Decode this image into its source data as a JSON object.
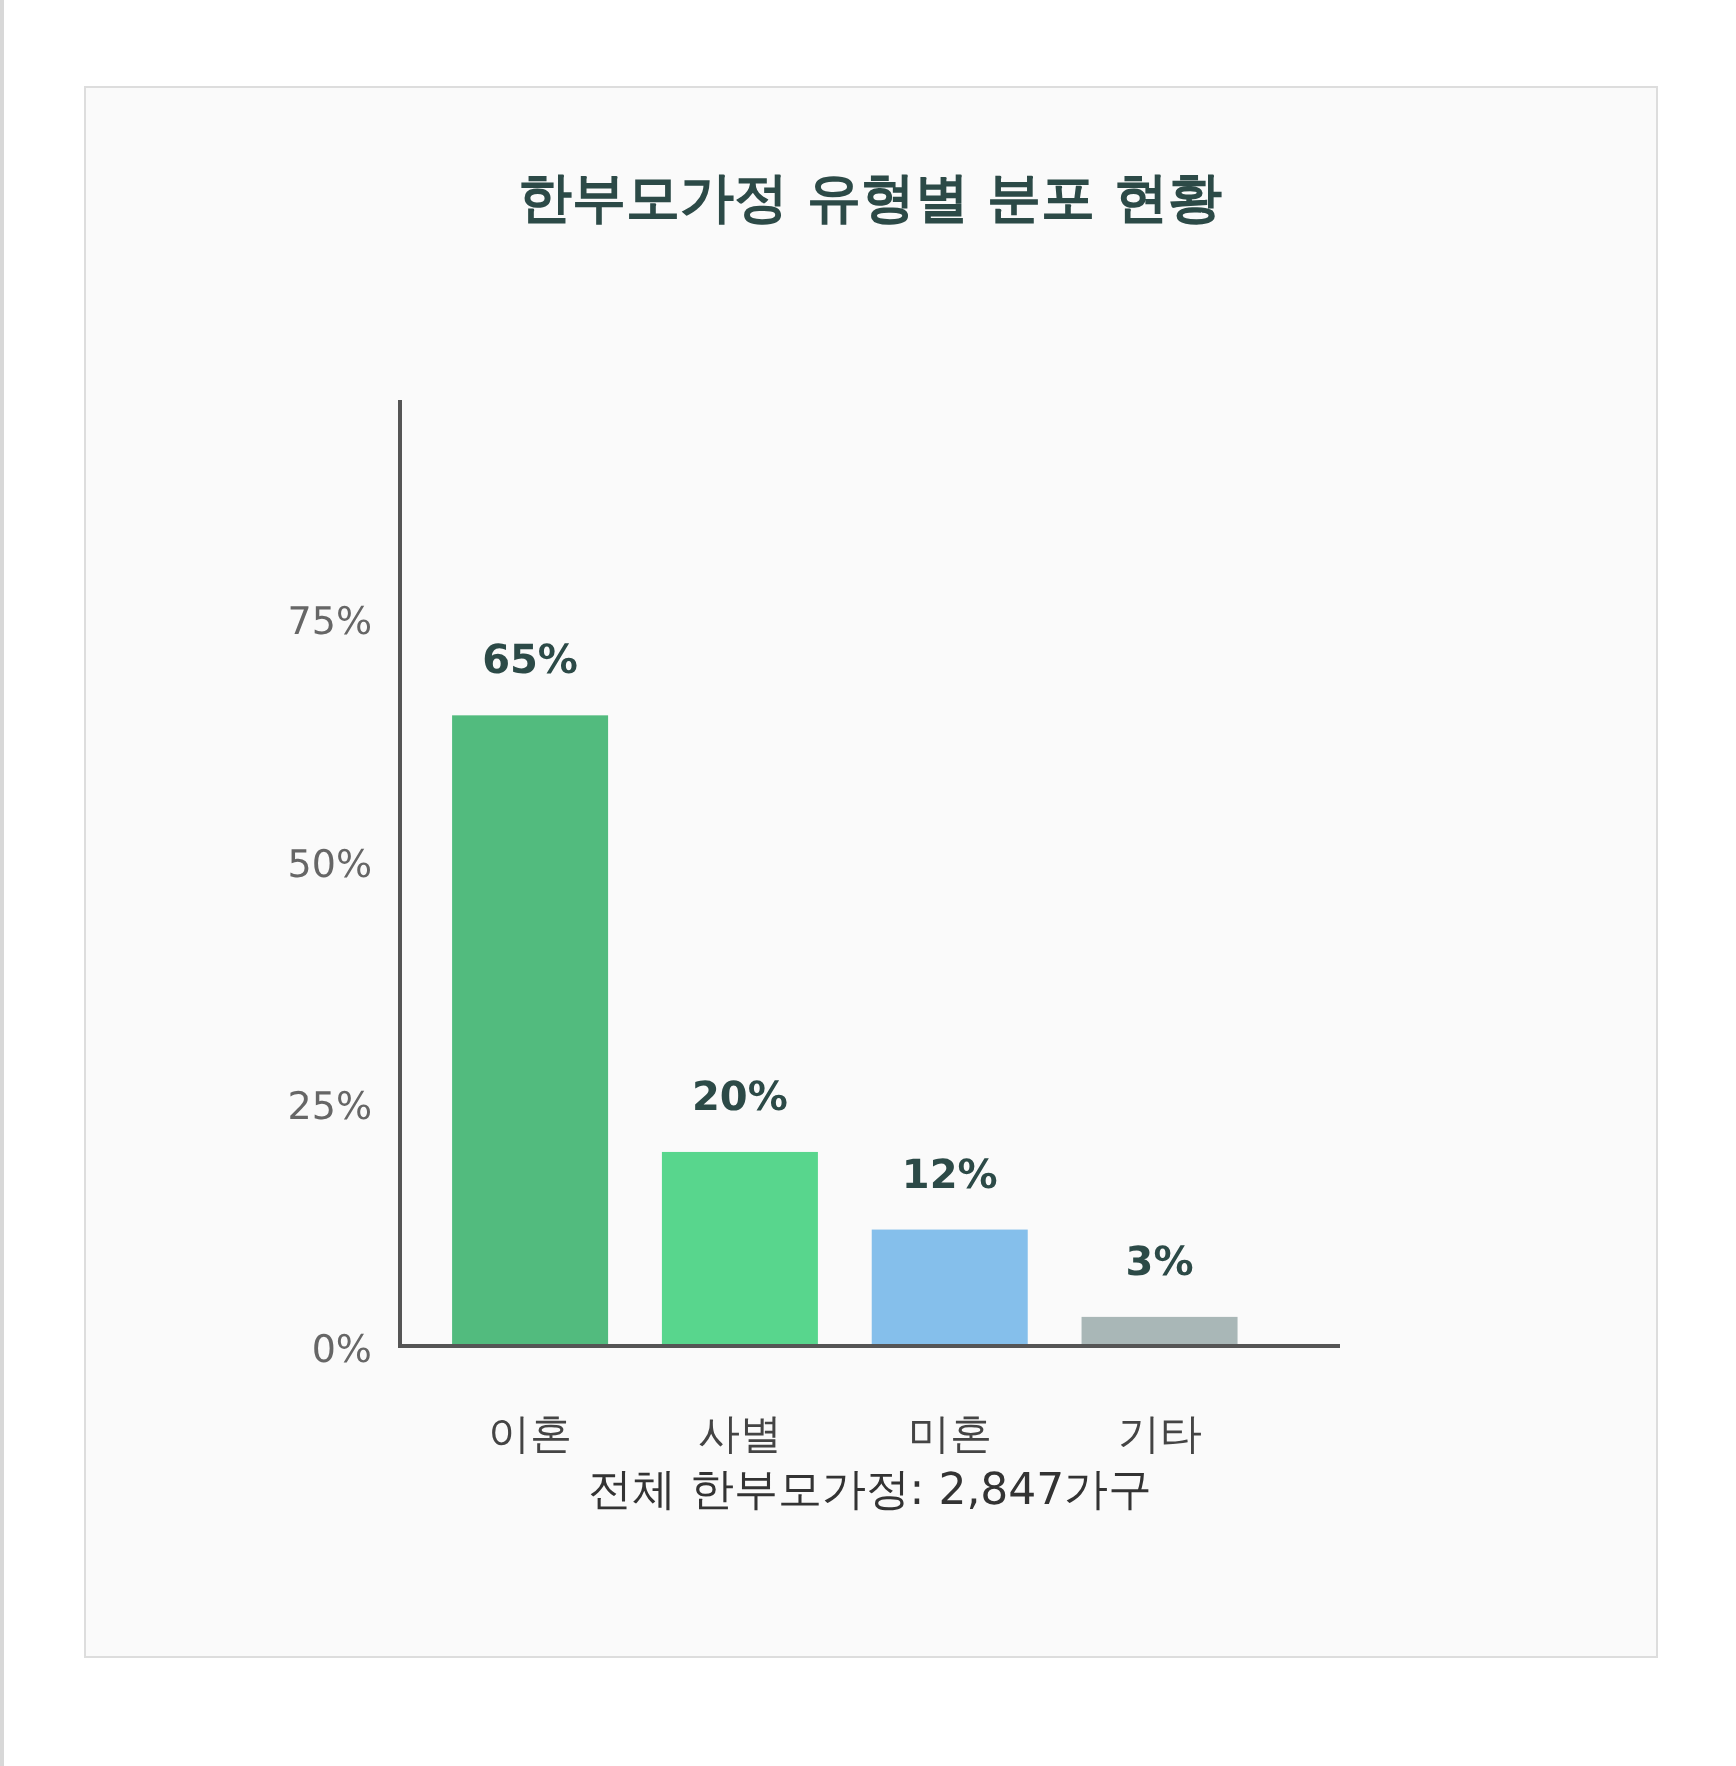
{
  "chart_data": {
    "type": "bar",
    "title": "한부모가정 유형별 분포 현황",
    "categories": [
      "이혼",
      "사별",
      "미혼",
      "기타"
    ],
    "values": [
      65,
      20,
      12,
      3
    ],
    "colors": [
      "#52bb7e",
      "#58d68d",
      "#85bfeb",
      "#a9b7b7"
    ],
    "ylim": [
      0,
      97.5
    ],
    "yticks": [
      {
        "value": 0,
        "label": "0%"
      },
      {
        "value": 25,
        "label": "25%"
      },
      {
        "value": 50,
        "label": "50%"
      },
      {
        "value": 75,
        "label": "75%"
      }
    ],
    "value_labels": [
      "65%",
      "20%",
      "12%",
      "3%"
    ],
    "annotations": [
      "전체 한부모가정: 2,847가구"
    ]
  }
}
